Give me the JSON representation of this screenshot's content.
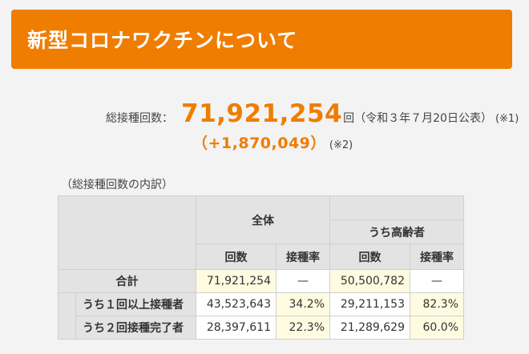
{
  "banner": {
    "title": "新型コロナワクチンについて"
  },
  "summary": {
    "label": "総接種回数：",
    "total": "71,921,254",
    "unit": "回",
    "published": "（令和３年７月20日公表）",
    "note1": "(※1)",
    "diff": "（+1,870,049）",
    "note2": "(※2)"
  },
  "breakdown": {
    "title": "（総接種回数の内訳）",
    "group_all": "全体",
    "group_elderly": "うち高齢者",
    "col_count": "回数",
    "col_rate": "接種率",
    "rows": [
      {
        "label": "合計",
        "all_count": "71,921,254",
        "all_rate": "—",
        "elderly_count": "50,500,782",
        "elderly_rate": "—"
      },
      {
        "label": "うち１回以上接種者",
        "all_count": "43,523,643",
        "all_rate": "34.2%",
        "elderly_count": "29,211,153",
        "elderly_rate": "82.3%"
      },
      {
        "label": "うち２回接種完了者",
        "all_count": "28,397,611",
        "all_rate": "22.3%",
        "elderly_count": "21,289,629",
        "elderly_rate": "60.0%"
      }
    ]
  }
}
